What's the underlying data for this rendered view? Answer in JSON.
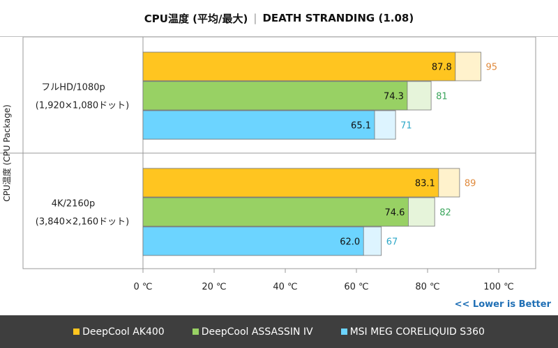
{
  "title": {
    "main": "CPU温度 (平均/最大)",
    "sub": "DEATH STRANDING (1.08)"
  },
  "colors": {
    "s1_avg": "#FFC520",
    "s1_max": "#FFF2CC",
    "s1_label": "#E08A3C",
    "s2_avg": "#98D164",
    "s2_max": "#E6F4DA",
    "s2_label": "#3BA55C",
    "s3_avg": "#6CD4FF",
    "s3_max": "#DDF4FF",
    "s3_label": "#2EA8C8"
  },
  "chart_data": {
    "type": "bar",
    "orientation": "horizontal",
    "ylabel": "CPU温度 (CPU Package)",
    "xlim": [
      0,
      100
    ],
    "xticks": [
      "0 ℃",
      "20 ℃",
      "40 ℃",
      "60 ℃",
      "80 ℃",
      "100 ℃"
    ],
    "categories": [
      {
        "line1": "フルHD/1080p",
        "line2": "(1,920×1,080ドット)"
      },
      {
        "line1": "4K/2160p",
        "line2": "(3,840×2,160ドット)"
      }
    ],
    "series": [
      {
        "name": "DeepCool AK400",
        "avg": [
          "87.8",
          "83.1"
        ],
        "max": [
          "95",
          "89"
        ]
      },
      {
        "name": "DeepCool ASSASSIN IV",
        "avg": [
          "74.3",
          "74.6"
        ],
        "max": [
          "81",
          "82"
        ]
      },
      {
        "name": "MSI MEG CORELIQUID S360",
        "avg": [
          "65.1",
          "62.0"
        ],
        "max": [
          "71",
          "67"
        ]
      }
    ],
    "note": "<< Lower is Better"
  }
}
